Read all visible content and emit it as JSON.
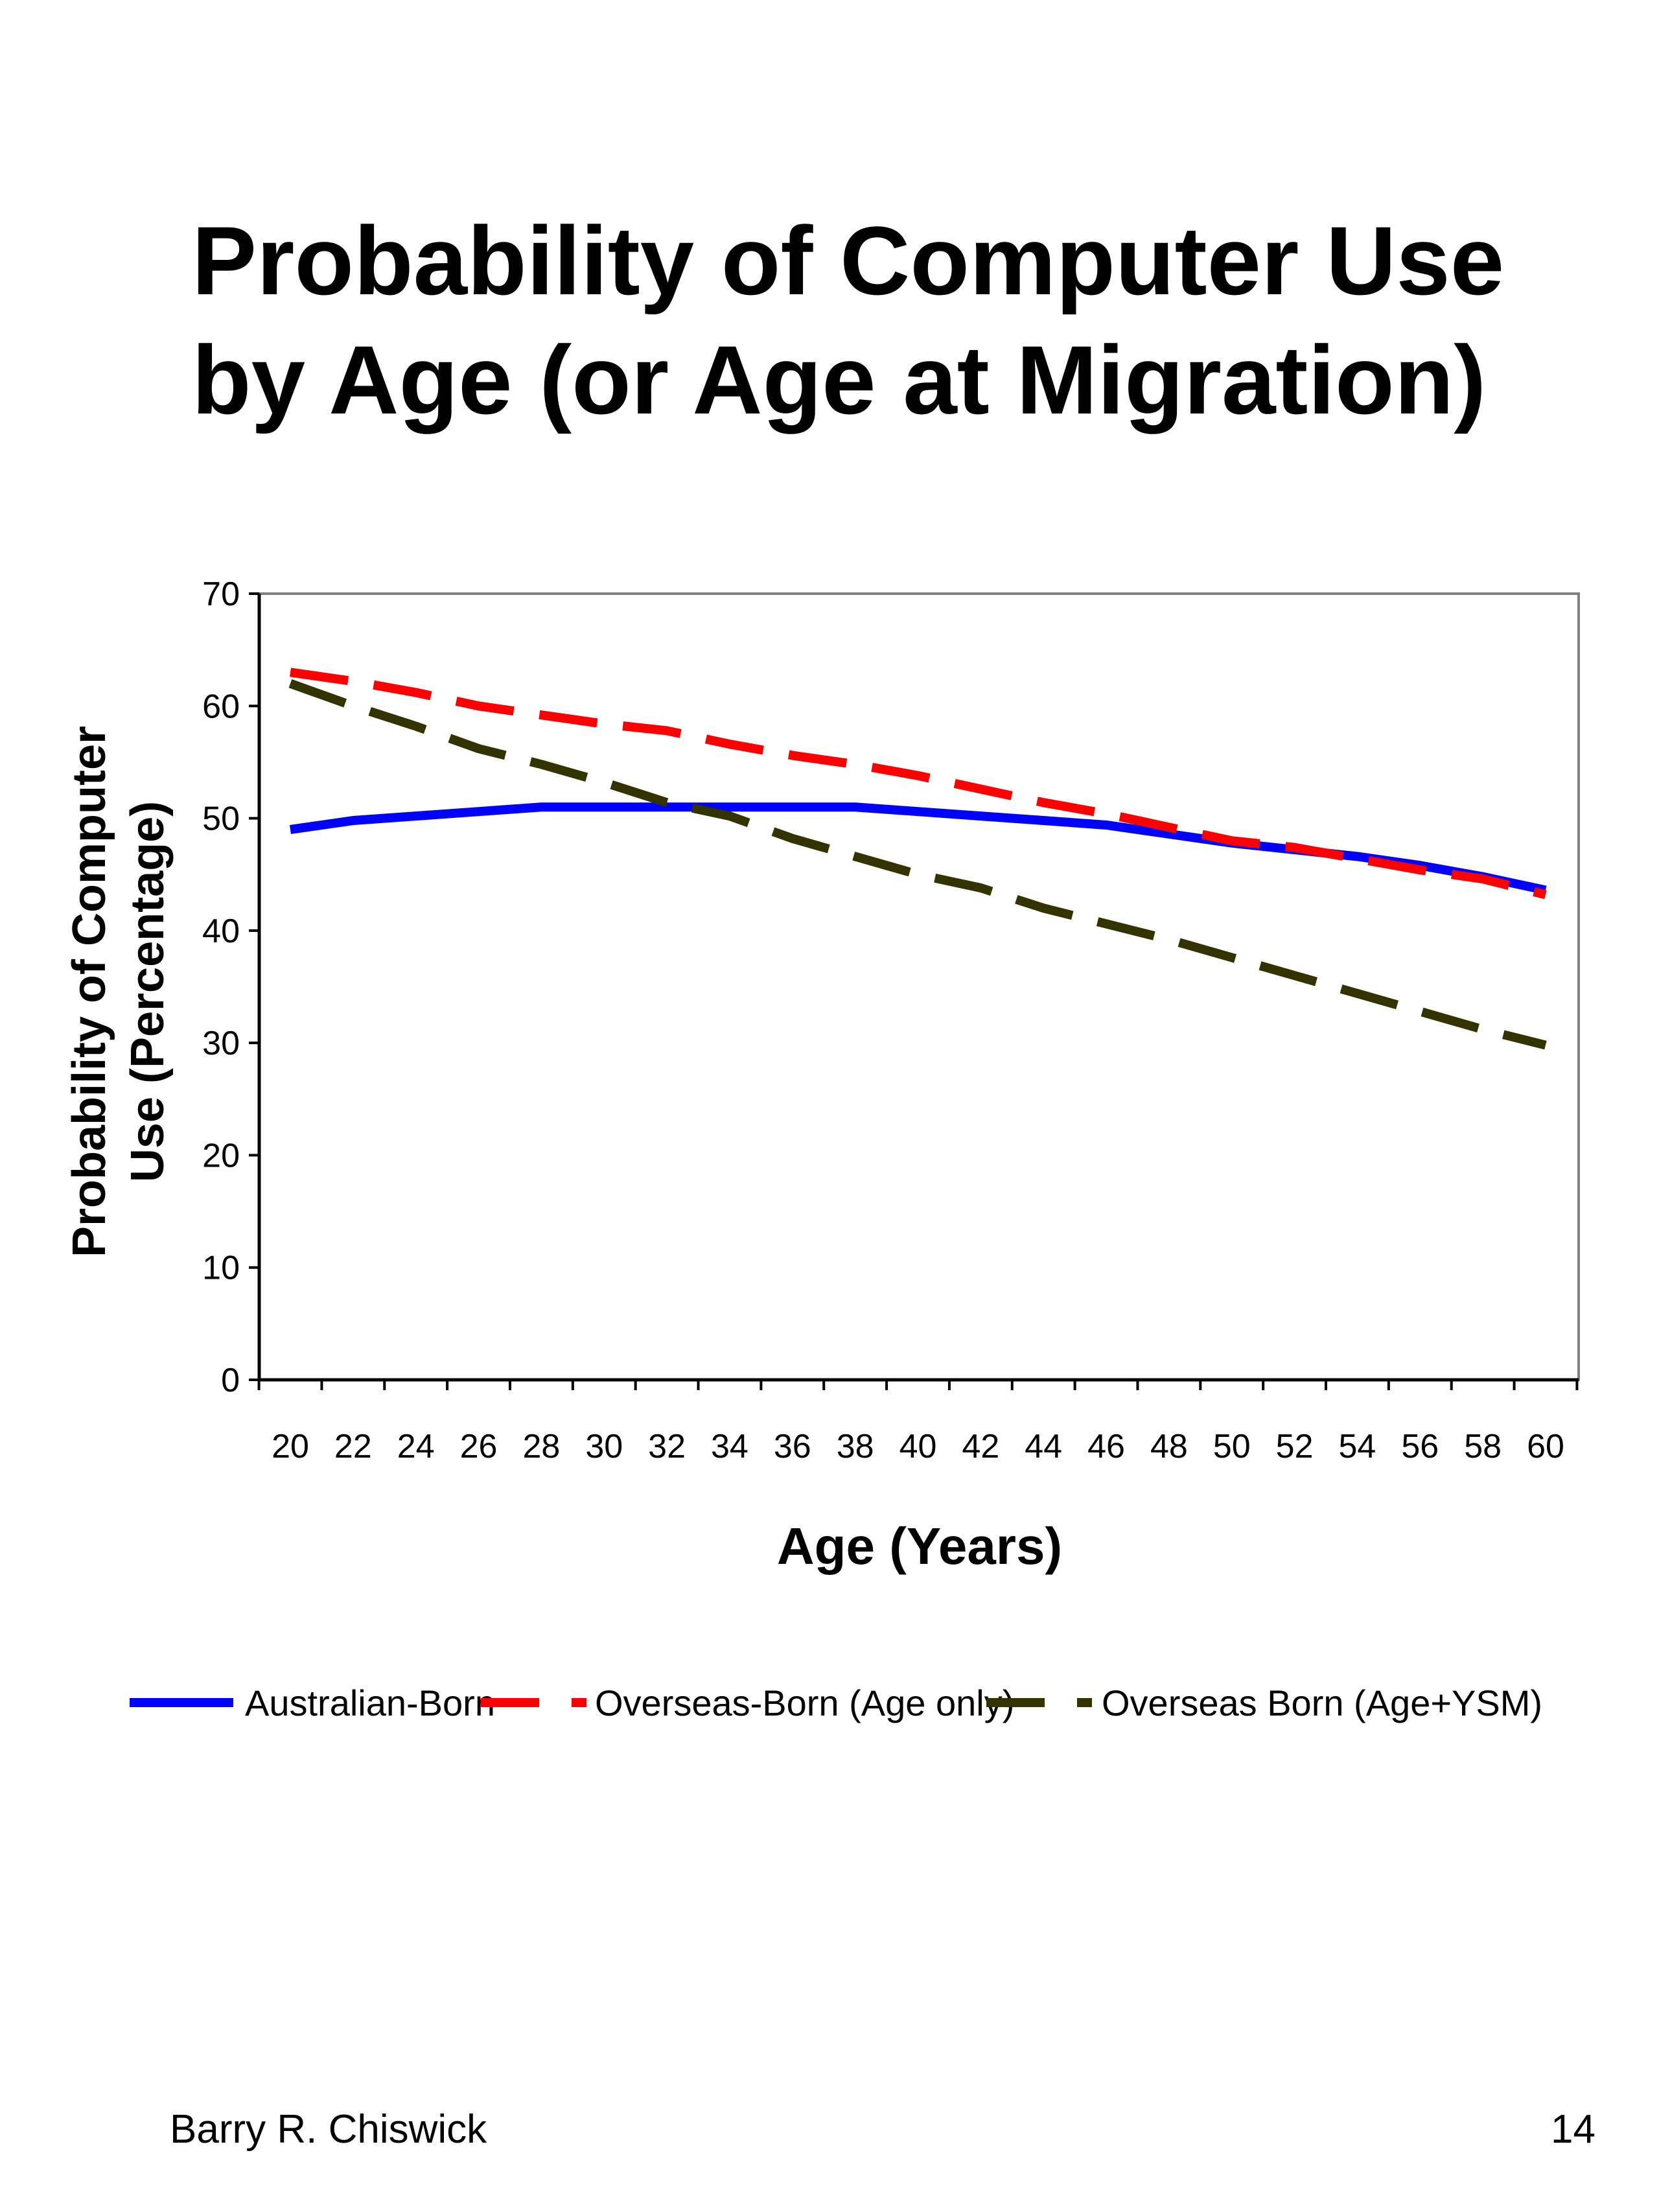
{
  "slide": {
    "title_line1": "Probability of Computer Use",
    "title_line2": "by Age (or Age at Migration)",
    "author": "Barry R. Chiswick",
    "page_number": "14"
  },
  "chart_data": {
    "type": "line",
    "title": "",
    "xlabel": "Age (Years)",
    "ylabel_line1": "Probability of Computer",
    "ylabel_line2": "Use (Percentage)",
    "x": [
      20,
      22,
      24,
      26,
      28,
      30,
      32,
      34,
      36,
      38,
      40,
      42,
      44,
      46,
      48,
      50,
      52,
      54,
      56,
      58,
      60
    ],
    "xlim": [
      20,
      60
    ],
    "ylim": [
      0,
      70
    ],
    "yticks": [
      0,
      10,
      20,
      30,
      40,
      50,
      60,
      70
    ],
    "grid": false,
    "legend_position": "bottom",
    "series": [
      {
        "name": "Australian-Born",
        "color": "#0000ff",
        "style": "solid",
        "values": [
          49.0,
          49.8,
          50.2,
          50.6,
          51.0,
          51.0,
          51.0,
          51.0,
          51.0,
          51.0,
          50.6,
          50.2,
          49.8,
          49.4,
          48.6,
          47.8,
          47.2,
          46.6,
          45.8,
          44.8,
          43.6
        ]
      },
      {
        "name": "Overseas-Born (Age only)",
        "color": "#ff0000",
        "style": "dashed",
        "values": [
          63.0,
          62.2,
          61.2,
          60.0,
          59.2,
          58.4,
          57.8,
          56.6,
          55.6,
          54.8,
          53.8,
          52.6,
          51.4,
          50.4,
          49.2,
          48.0,
          47.4,
          46.4,
          45.4,
          44.6,
          43.2
        ]
      },
      {
        "name": "Overseas Born (Age+YSM)",
        "color": "#333300",
        "style": "dashed",
        "values": [
          62.0,
          60.0,
          58.2,
          56.2,
          54.8,
          53.2,
          51.4,
          50.2,
          48.2,
          46.6,
          45.0,
          43.8,
          42.0,
          40.6,
          39.2,
          37.6,
          36.0,
          34.4,
          32.8,
          31.2,
          29.8
        ]
      }
    ]
  }
}
